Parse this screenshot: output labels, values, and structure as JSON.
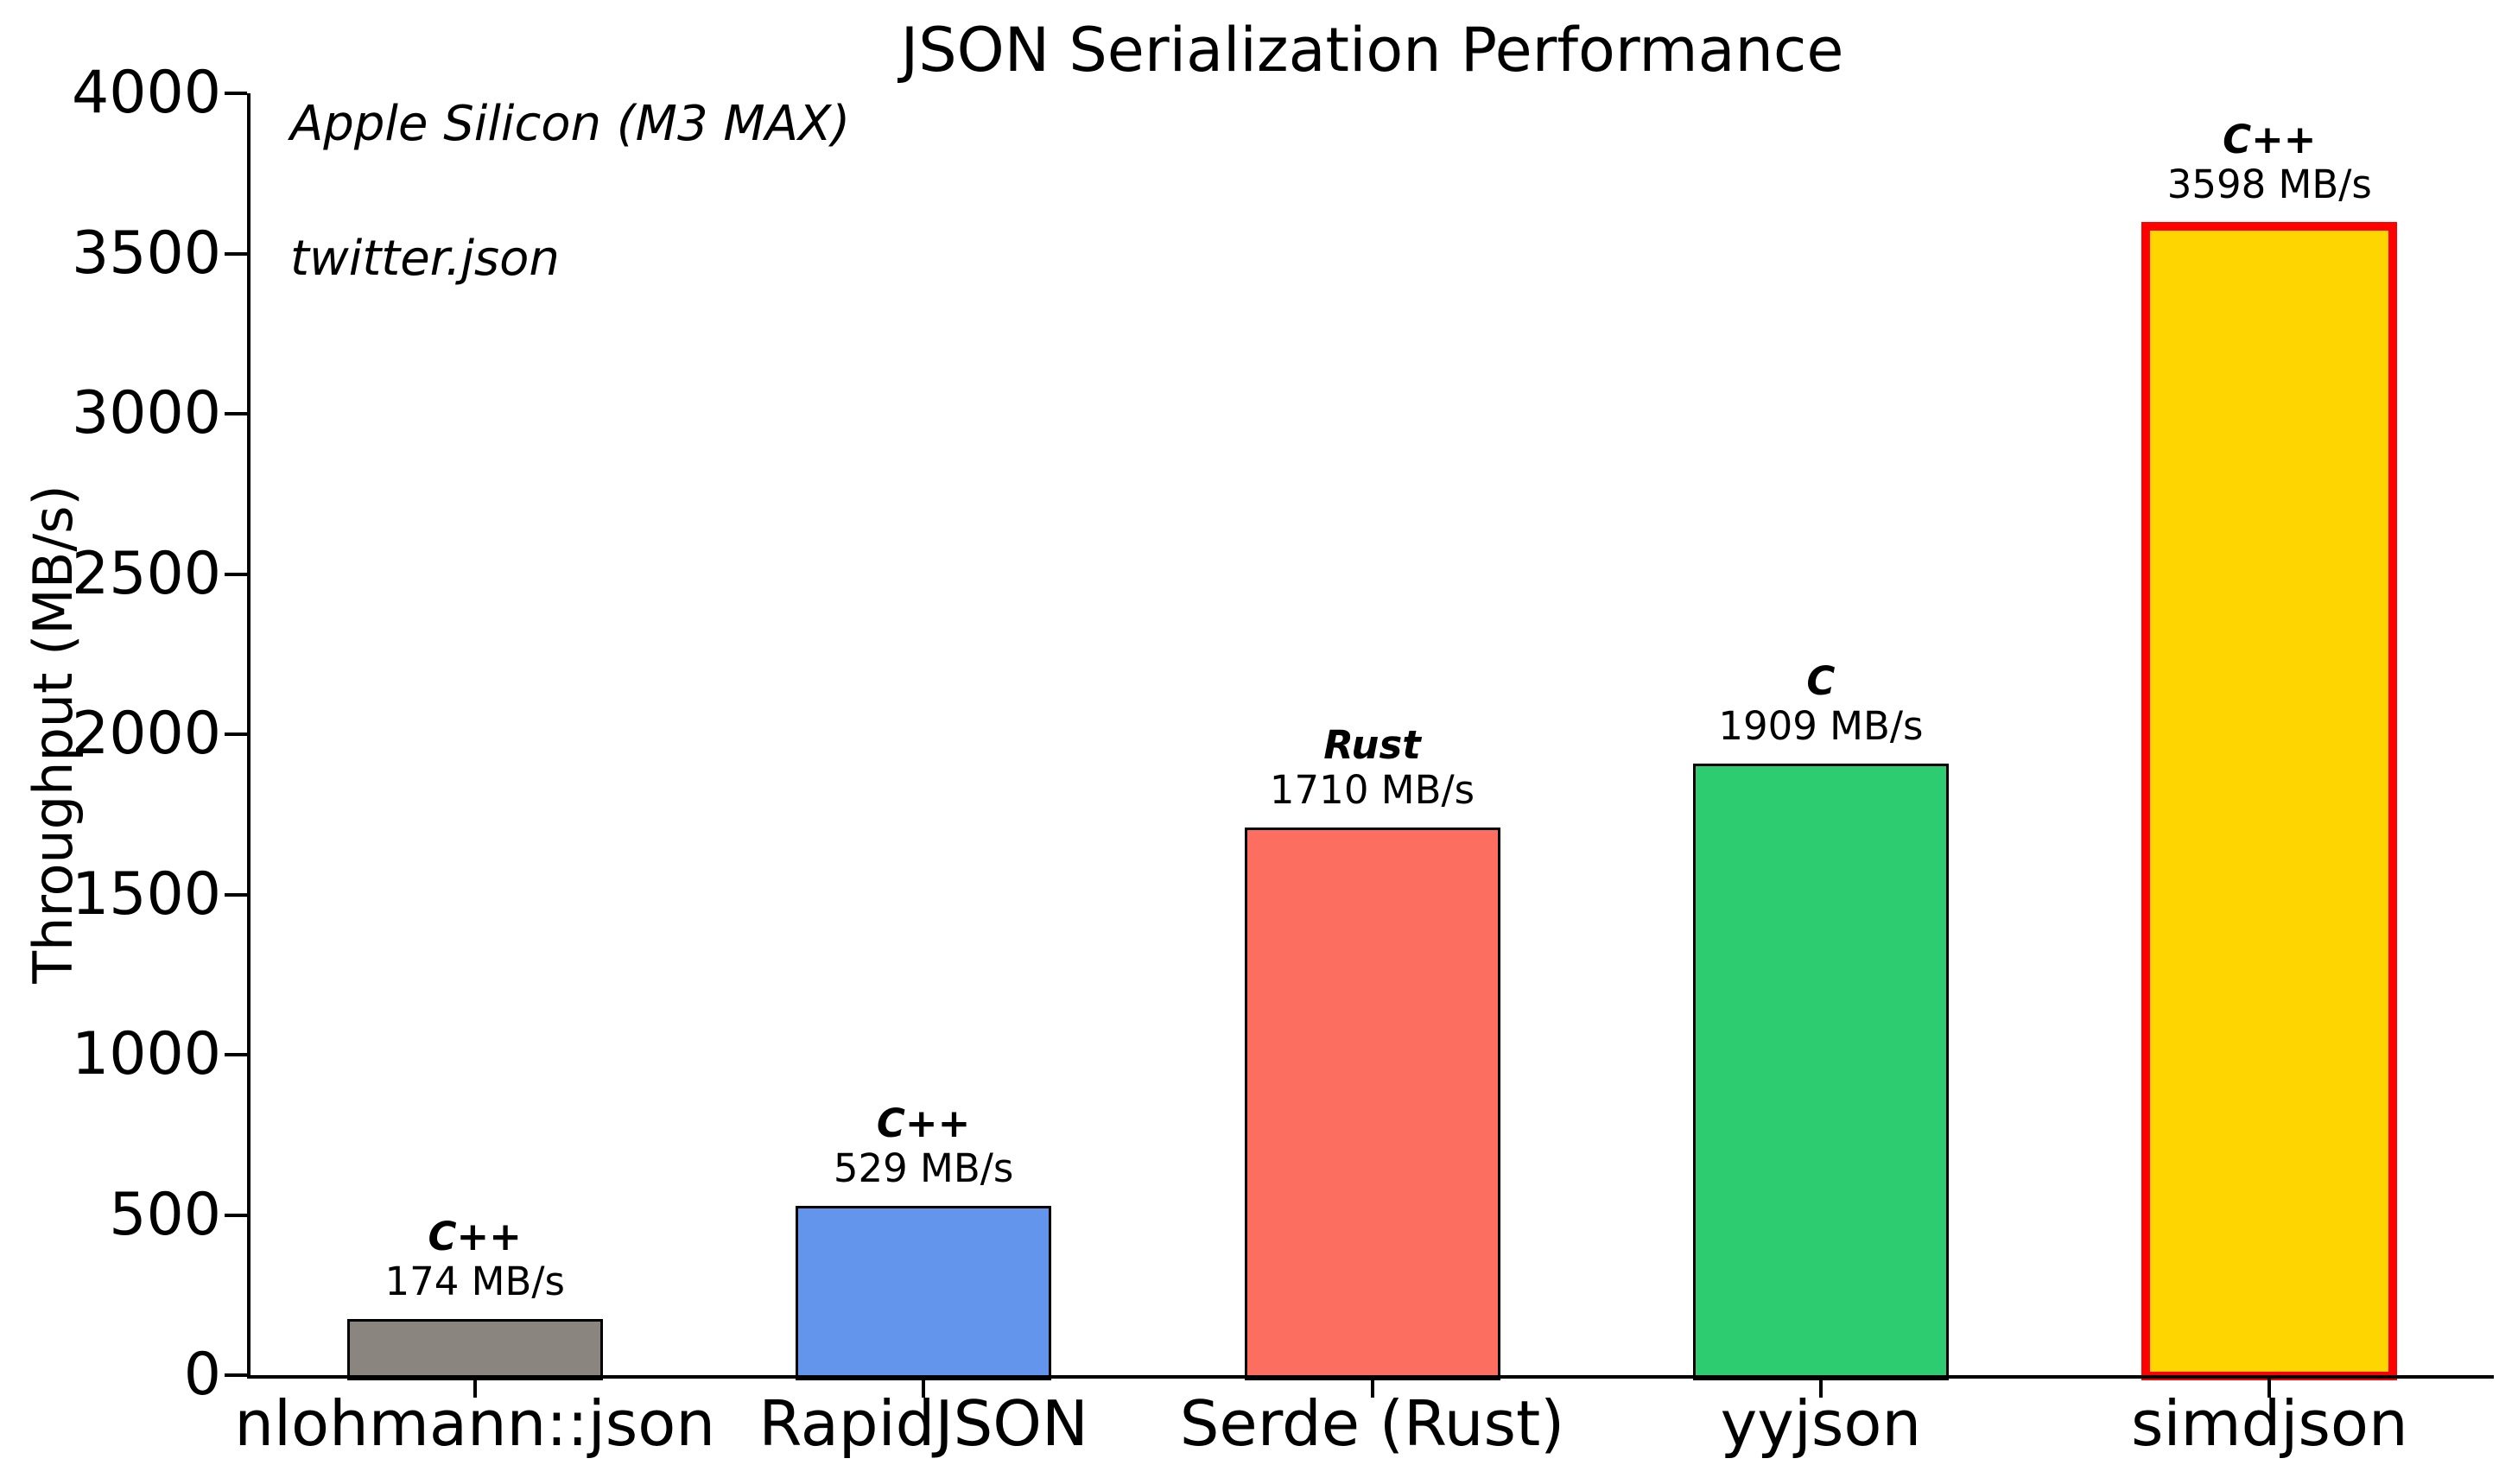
{
  "chart_data": {
    "type": "bar",
    "title": "JSON Serialization Performance",
    "ylabel": "Throughput (MB/s)",
    "xlabel": "",
    "ylim": [
      0,
      4000
    ],
    "yticks": [
      0,
      500,
      1000,
      1500,
      2000,
      2500,
      3000,
      3500,
      4000
    ],
    "grid": false,
    "legend": null,
    "annotations": {
      "hardware": "Apple Silicon (M3 MAX)",
      "dataset": "twitter.json"
    },
    "categories": [
      "nlohmann::json",
      "RapidJSON",
      "Serde (Rust)",
      "yyjson",
      "simdjson"
    ],
    "values": [
      174,
      529,
      1710,
      1909,
      3598
    ],
    "bars": [
      {
        "category": "nlohmann::json",
        "language": "C++",
        "value": 174,
        "value_label": "174 MB/s",
        "fill": "#8A857E",
        "edge": "#000000",
        "highlighted": false
      },
      {
        "category": "RapidJSON",
        "language": "C++",
        "value": 529,
        "value_label": "529 MB/s",
        "fill": "#6495ED",
        "edge": "#000000",
        "highlighted": false
      },
      {
        "category": "Serde (Rust)",
        "language": "Rust",
        "value": 1710,
        "value_label": "1710 MB/s",
        "fill": "#FC6E60",
        "edge": "#000000",
        "highlighted": false
      },
      {
        "category": "yyjson",
        "language": "C",
        "value": 1909,
        "value_label": "1909 MB/s",
        "fill": "#2ECC71",
        "edge": "#000000",
        "highlighted": false
      },
      {
        "category": "simdjson",
        "language": "C++",
        "value": 3598,
        "value_label": "3598 MB/s",
        "fill": "#FFD500",
        "edge": "#FF0000",
        "highlighted": true
      }
    ],
    "highlight": {
      "category": "simdjson",
      "edge_color": "#FF0000"
    }
  },
  "colors": {
    "background": "#FFFFFF",
    "text": "#000000",
    "axis": "#000000",
    "default_bar_edge": "#000000",
    "highlight_edge": "#FF0000"
  }
}
